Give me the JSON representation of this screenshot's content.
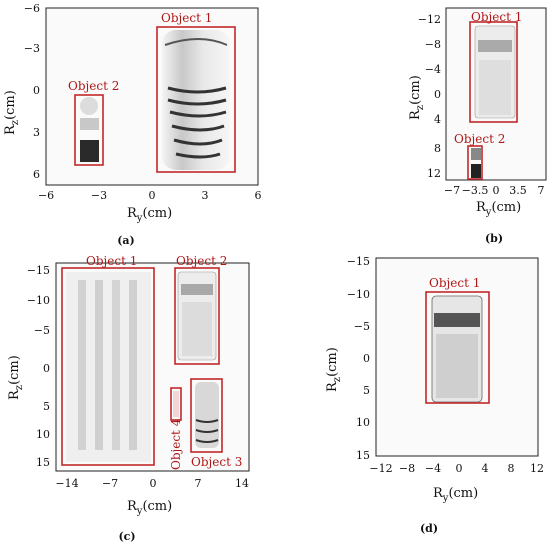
{
  "panels": [
    {
      "caption": "(a)",
      "ylabel": "R",
      "ylabel_sub": "z",
      "ylabel_unit": "(cm)",
      "xlabel": "R",
      "xlabel_sub": "y",
      "xlabel_unit": "(cm)",
      "xticks": [
        "−6",
        "−3",
        "0",
        "3",
        "6"
      ],
      "yticks": [
        "−6",
        "−3",
        "0",
        "3",
        "6"
      ],
      "objects": [
        {
          "label": "Object 1"
        },
        {
          "label": "Object 2"
        }
      ]
    },
    {
      "caption": "(b)",
      "ylabel": "R",
      "ylabel_sub": "z",
      "ylabel_unit": "(cm)",
      "xlabel": "R",
      "xlabel_sub": "y",
      "xlabel_unit": "(cm)",
      "xticks": [
        "−7",
        "−3.5",
        "0",
        "3.5",
        "7"
      ],
      "yticks": [
        "−12",
        "−8",
        "−4",
        "0",
        "4",
        "8",
        "12"
      ],
      "objects": [
        {
          "label": "Object 1"
        },
        {
          "label": "Object 2"
        }
      ]
    },
    {
      "caption": "(c)",
      "ylabel": "R",
      "ylabel_sub": "z",
      "ylabel_unit": "(cm)",
      "xlabel": "R",
      "xlabel_sub": "y",
      "xlabel_unit": "(cm)",
      "xticks": [
        "−14",
        "−7",
        "0",
        "7",
        "14"
      ],
      "yticks": [
        "−15",
        "−10",
        "−5",
        "0",
        "5",
        "10",
        "15"
      ],
      "objects": [
        {
          "label": "Object 1"
        },
        {
          "label": "Object 2"
        },
        {
          "label": "Object 3"
        },
        {
          "label": "Object 4"
        }
      ]
    },
    {
      "caption": "(d)",
      "ylabel": "R",
      "ylabel_sub": "z",
      "ylabel_unit": "(cm)",
      "xlabel": "R",
      "xlabel_sub": "y",
      "xlabel_unit": "(cm)",
      "xticks": [
        "−12",
        "−8",
        "−4",
        "0",
        "4",
        "8",
        "12"
      ],
      "yticks": [
        "−15",
        "−10",
        "−5",
        "0",
        "5",
        "10",
        "15"
      ],
      "objects": [
        {
          "label": "Object 1"
        }
      ]
    }
  ]
}
